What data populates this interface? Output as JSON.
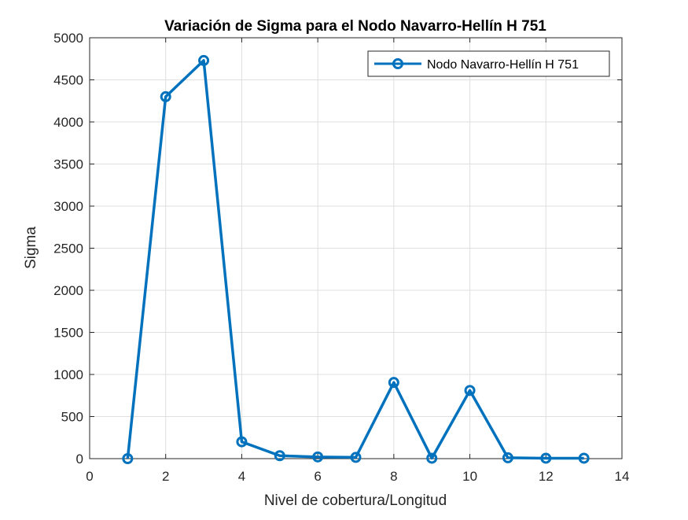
{
  "chart_data": {
    "type": "line",
    "title": "Variación de Sigma para el Nodo Navarro-Hellín H 751",
    "xlabel": "Nivel de cobertura/Longitud",
    "ylabel": "Sigma",
    "xlim": [
      0,
      14
    ],
    "ylim": [
      0,
      5000
    ],
    "xticks": [
      0,
      2,
      4,
      6,
      8,
      10,
      12,
      14
    ],
    "yticks": [
      0,
      500,
      1000,
      1500,
      2000,
      2500,
      3000,
      3500,
      4000,
      4500,
      5000
    ],
    "grid": true,
    "legend_position": "top-right",
    "series": [
      {
        "name": "Nodo Navarro-Hellín H 751",
        "color": "#0072bd",
        "marker": "circle",
        "x": [
          1,
          2,
          3,
          4,
          5,
          6,
          7,
          8,
          9,
          10,
          11,
          12,
          13
        ],
        "y": [
          0,
          4300,
          4730,
          200,
          35,
          20,
          15,
          905,
          5,
          810,
          10,
          5,
          5
        ]
      }
    ]
  }
}
